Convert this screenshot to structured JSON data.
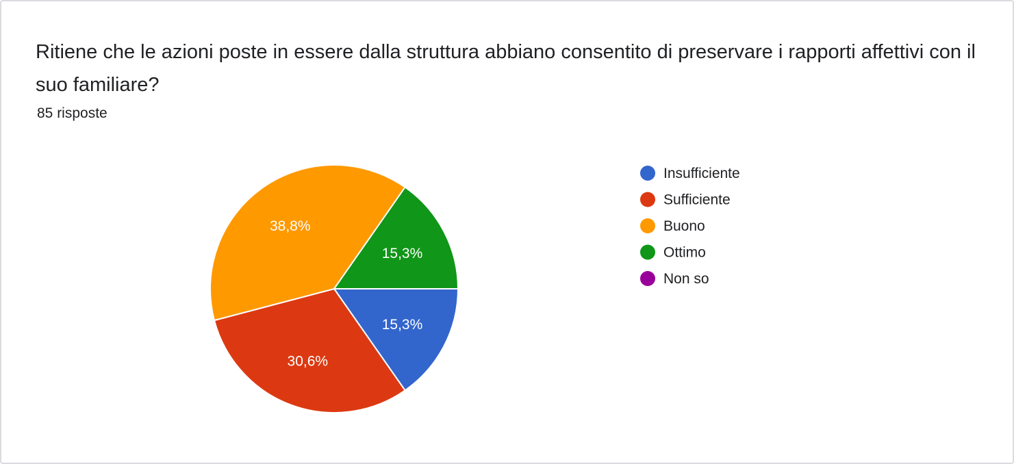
{
  "question": {
    "title": "Ritiene che le azioni poste in essere dalla struttura abbiano consentito di preservare i rapporti affettivi con il suo familiare?",
    "responses": "85 risposte"
  },
  "chart_data": {
    "type": "pie",
    "categories": [
      "Insufficiente",
      "Sufficiente",
      "Buono",
      "Ottimo",
      "Non so"
    ],
    "values": [
      15.3,
      30.6,
      38.8,
      15.3,
      0
    ],
    "labels": [
      "15,3%",
      "30,6%",
      "38,8%",
      "15,3%",
      ""
    ],
    "colors": [
      "#3366cc",
      "#dc3912",
      "#ff9900",
      "#109618",
      "#990099"
    ],
    "legend_position": "right"
  }
}
